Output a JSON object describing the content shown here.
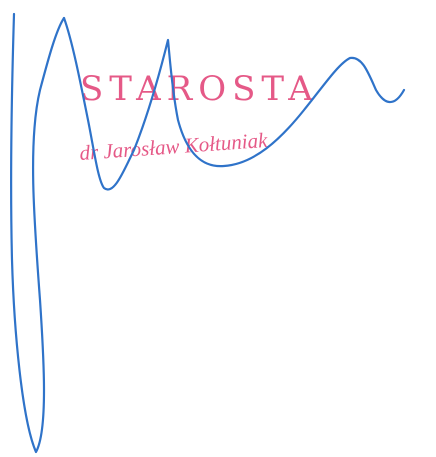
{
  "stamp": {
    "title": "STAROSTA",
    "name": "dr Jarosław Kołtuniak",
    "color": "#e13d73"
  },
  "signature": {
    "color": "#2f73c9"
  }
}
